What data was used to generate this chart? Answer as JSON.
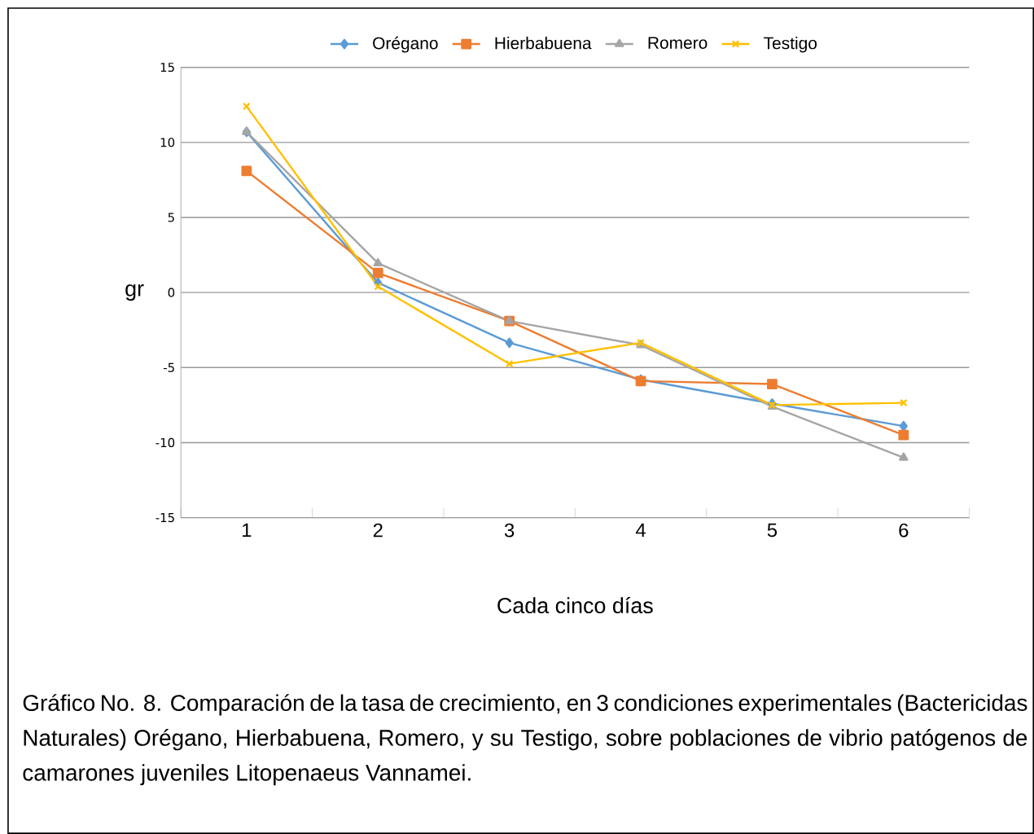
{
  "chart_data": {
    "type": "line",
    "xlabel": "Cada cinco días",
    "ylabel": "gr",
    "categories": [
      "1",
      "2",
      "3",
      "4",
      "5",
      "6"
    ],
    "series": [
      {
        "name": "Orégano",
        "color": "#5b9bd5",
        "marker": "diamond",
        "values": [
          10.7,
          0.65,
          -3.35,
          -5.8,
          -7.4,
          -8.9
        ]
      },
      {
        "name": "Hierbabuena",
        "color": "#ed7d31",
        "marker": "square",
        "values": [
          8.1,
          1.3,
          -1.9,
          -5.9,
          -6.1,
          -9.5
        ]
      },
      {
        "name": "Romero",
        "color": "#a5a5a5",
        "marker": "triangle",
        "values": [
          10.7,
          1.95,
          -1.9,
          -3.5,
          -7.6,
          -11
        ]
      },
      {
        "name": "Testigo",
        "color": "#ffc000",
        "marker": "cross",
        "values": [
          12.4,
          0.4,
          -4.75,
          -3.35,
          -7.5,
          -7.35
        ]
      }
    ],
    "ylim": [
      -15,
      15
    ],
    "yticks": [
      -15,
      -10,
      -5,
      0,
      5,
      10,
      15
    ],
    "grid": "y",
    "legend": "top",
    "annotations": [
      "Gráfico No. 8. Comparación de la tasa de crecimiento, en 3 condiciones experimentales (Bactericidas Naturales) Orégano, Hierbabuena, Romero, y su Testigo, sobre poblaciones de vibrio patógenos de camarones juveniles Litopenaeus Vannamei."
    ]
  }
}
